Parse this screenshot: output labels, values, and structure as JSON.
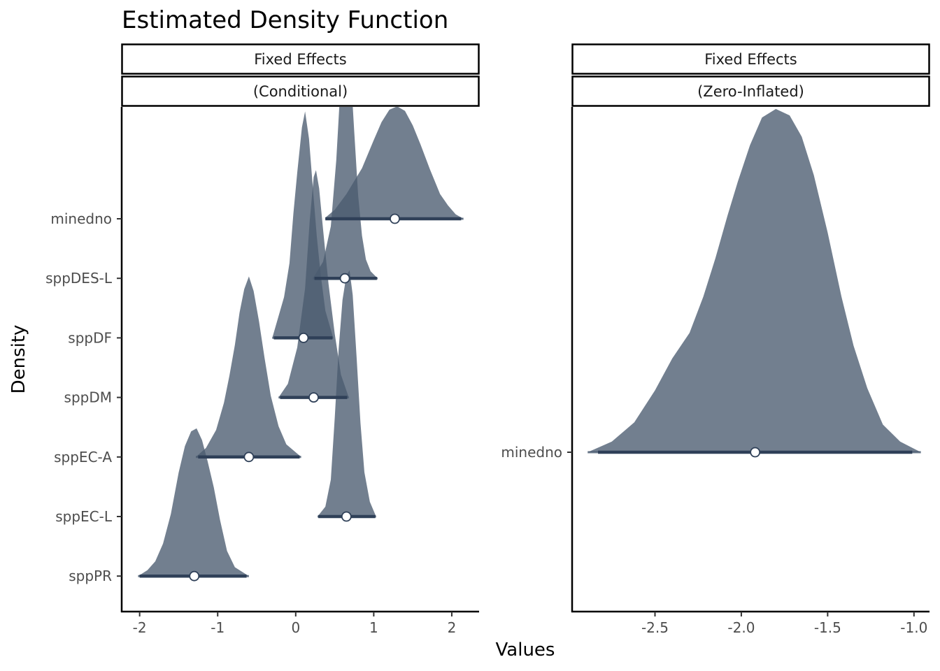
{
  "chart_data": {
    "type": "density-ridges",
    "title": "Estimated Density Function",
    "xlabel": "Values",
    "ylabel": "Density",
    "fill_color": "#4a5b70",
    "interval_color": "#2f4058",
    "point_fill": "#ffffff",
    "grid": false,
    "panels": [
      {
        "strips": [
          "Fixed Effects",
          "(Conditional)"
        ],
        "xlim": [
          -2.23,
          2.35
        ],
        "x_ticks": [
          -2,
          -1,
          0,
          1,
          2
        ],
        "x_tick_labels": [
          "-2",
          "-1",
          "0",
          "1",
          "2"
        ],
        "categories": [
          "minedno",
          "sppDES-L",
          "sppDF",
          "sppDM",
          "sppEC-A",
          "sppEC-L",
          "sppPR"
        ],
        "series": [
          {
            "name": "minedno",
            "median": 1.27,
            "interval": [
              0.38,
              2.12
            ],
            "range": [
              0.38,
              2.15
            ],
            "height": 1.37,
            "profile": [
              [
                0.38,
                0.01
              ],
              [
                0.5,
                0.08
              ],
              [
                0.65,
                0.22
              ],
              [
                0.85,
                0.45
              ],
              [
                1.0,
                0.7
              ],
              [
                1.1,
                0.86
              ],
              [
                1.2,
                0.97
              ],
              [
                1.3,
                1.0
              ],
              [
                1.4,
                0.96
              ],
              [
                1.5,
                0.83
              ],
              [
                1.6,
                0.66
              ],
              [
                1.72,
                0.44
              ],
              [
                1.85,
                0.22
              ],
              [
                1.95,
                0.12
              ],
              [
                2.05,
                0.04
              ],
              [
                2.15,
                0.0
              ]
            ]
          },
          {
            "name": "sppDES-L",
            "median": 0.63,
            "interval": [
              0.24,
              1.04
            ],
            "range": [
              0.22,
              1.05
            ],
            "height": 2.88,
            "profile": [
              [
                0.22,
                0.0
              ],
              [
                0.35,
                0.07
              ],
              [
                0.45,
                0.22
              ],
              [
                0.52,
                0.5
              ],
              [
                0.58,
                0.85
              ],
              [
                0.64,
                1.0
              ],
              [
                0.7,
                0.9
              ],
              [
                0.75,
                0.62
              ],
              [
                0.8,
                0.35
              ],
              [
                0.85,
                0.18
              ],
              [
                0.9,
                0.08
              ],
              [
                0.96,
                0.03
              ],
              [
                1.05,
                0.0
              ]
            ]
          },
          {
            "name": "sppDF",
            "median": 0.1,
            "interval": [
              -0.28,
              0.47
            ],
            "range": [
              -0.3,
              0.48
            ],
            "height": 2.76,
            "profile": [
              [
                -0.3,
                0.0
              ],
              [
                -0.25,
                0.06
              ],
              [
                -0.15,
                0.18
              ],
              [
                -0.08,
                0.33
              ],
              [
                -0.03,
                0.55
              ],
              [
                0.02,
                0.73
              ],
              [
                0.08,
                0.93
              ],
              [
                0.12,
                1.0
              ],
              [
                0.17,
                0.88
              ],
              [
                0.22,
                0.66
              ],
              [
                0.27,
                0.45
              ],
              [
                0.32,
                0.28
              ],
              [
                0.38,
                0.12
              ],
              [
                0.48,
                0.0
              ]
            ]
          },
          {
            "name": "sppDM",
            "median": 0.23,
            "interval": [
              -0.2,
              0.66
            ],
            "range": [
              -0.22,
              0.68
            ],
            "height": 2.77,
            "profile": [
              [
                -0.22,
                0.0
              ],
              [
                -0.1,
                0.06
              ],
              [
                0.02,
                0.22
              ],
              [
                0.12,
                0.48
              ],
              [
                0.18,
                0.78
              ],
              [
                0.23,
                0.97
              ],
              [
                0.26,
                1.0
              ],
              [
                0.3,
                0.92
              ],
              [
                0.35,
                0.74
              ],
              [
                0.42,
                0.5
              ],
              [
                0.5,
                0.28
              ],
              [
                0.58,
                0.1
              ],
              [
                0.68,
                0.0
              ]
            ]
          },
          {
            "name": "sppEC-A",
            "median": -0.6,
            "interval": [
              -1.25,
              0.05
            ],
            "range": [
              -1.28,
              0.07
            ],
            "height": 2.2,
            "profile": [
              [
                -1.28,
                0.0
              ],
              [
                -1.15,
                0.05
              ],
              [
                -1.02,
                0.15
              ],
              [
                -0.92,
                0.3
              ],
              [
                -0.85,
                0.45
              ],
              [
                -0.78,
                0.62
              ],
              [
                -0.72,
                0.8
              ],
              [
                -0.66,
                0.93
              ],
              [
                -0.6,
                1.0
              ],
              [
                -0.54,
                0.92
              ],
              [
                -0.47,
                0.75
              ],
              [
                -0.4,
                0.55
              ],
              [
                -0.32,
                0.34
              ],
              [
                -0.22,
                0.17
              ],
              [
                -0.12,
                0.07
              ],
              [
                0.07,
                0.0
              ]
            ]
          },
          {
            "name": "sppEC-L",
            "median": 0.65,
            "interval": [
              0.29,
              1.02
            ],
            "range": [
              0.28,
              1.03
            ],
            "height": 3.0,
            "profile": [
              [
                0.28,
                0.0
              ],
              [
                0.38,
                0.04
              ],
              [
                0.45,
                0.15
              ],
              [
                0.5,
                0.4
              ],
              [
                0.55,
                0.68
              ],
              [
                0.6,
                0.88
              ],
              [
                0.65,
                0.98
              ],
              [
                0.69,
                1.0
              ],
              [
                0.73,
                0.9
              ],
              [
                0.78,
                0.65
              ],
              [
                0.83,
                0.38
              ],
              [
                0.88,
                0.18
              ],
              [
                0.95,
                0.06
              ],
              [
                1.03,
                0.0
              ]
            ]
          },
          {
            "name": "sppPR",
            "median": -1.3,
            "interval": [
              -2.0,
              -0.63
            ],
            "range": [
              -2.02,
              -0.6
            ],
            "height": 1.8,
            "profile": [
              [
                -2.02,
                0.0
              ],
              [
                -1.9,
                0.04
              ],
              [
                -1.8,
                0.1
              ],
              [
                -1.7,
                0.22
              ],
              [
                -1.6,
                0.42
              ],
              [
                -1.5,
                0.7
              ],
              [
                -1.42,
                0.88
              ],
              [
                -1.34,
                0.98
              ],
              [
                -1.27,
                1.0
              ],
              [
                -1.2,
                0.92
              ],
              [
                -1.13,
                0.78
              ],
              [
                -1.05,
                0.6
              ],
              [
                -0.97,
                0.38
              ],
              [
                -0.88,
                0.17
              ],
              [
                -0.78,
                0.06
              ],
              [
                -0.6,
                0.0
              ]
            ]
          }
        ]
      },
      {
        "strips": [
          "Fixed Effects",
          "(Zero-Inflated)"
        ],
        "xlim": [
          -2.98,
          -0.91
        ],
        "x_ticks": [
          -2.5,
          -2.0,
          -1.5,
          -1.0
        ],
        "x_tick_labels": [
          "-2.5",
          "-2.0",
          "-1.5",
          "-1.0"
        ],
        "categories": [
          "minedno"
        ],
        "series": [
          {
            "name": "minedno",
            "median": -1.92,
            "interval": [
              -2.83,
              -1.01
            ],
            "range": [
              -2.89,
              -0.96
            ],
            "height": 1.0,
            "profile": [
              [
                -2.89,
                0.0
              ],
              [
                -2.75,
                0.05
              ],
              [
                -2.62,
                0.14
              ],
              [
                -2.5,
                0.29
              ],
              [
                -2.4,
                0.44
              ],
              [
                -2.3,
                0.56
              ],
              [
                -2.22,
                0.73
              ],
              [
                -2.15,
                0.91
              ],
              [
                -2.08,
                1.11
              ],
              [
                -2.02,
                1.27
              ],
              [
                -1.95,
                1.44
              ],
              [
                -1.88,
                1.57
              ],
              [
                -1.8,
                1.61
              ],
              [
                -1.72,
                1.58
              ],
              [
                -1.65,
                1.48
              ],
              [
                -1.58,
                1.3
              ],
              [
                -1.5,
                1.03
              ],
              [
                -1.42,
                0.73
              ],
              [
                -1.35,
                0.5
              ],
              [
                -1.27,
                0.3
              ],
              [
                -1.18,
                0.13
              ],
              [
                -1.08,
                0.05
              ],
              [
                -0.96,
                0.0
              ]
            ]
          }
        ]
      }
    ]
  }
}
